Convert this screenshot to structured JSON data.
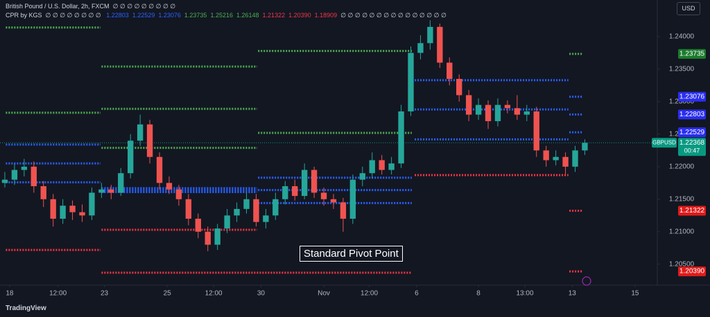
{
  "chart_data": {
    "type": "candlestick",
    "title": "British Pound / U.S. Dollar, 2h, FXCM",
    "title_na": "∅ ∅ ∅ ∅ ∅ ∅ ∅ ∅ ∅",
    "indicator": "CPR by KGS",
    "indicator_na_before": "∅ ∅ ∅ ∅ ∅ ∅ ∅ ∅",
    "indicator_values": [
      {
        "value": 1.22803,
        "label": "1.22803",
        "color": "#2962ff"
      },
      {
        "value": 1.22529,
        "label": "1.22529",
        "color": "#2962ff"
      },
      {
        "value": 1.23076,
        "label": "1.23076",
        "color": "#2962ff"
      },
      {
        "value": 1.23735,
        "label": "1.23735",
        "color": "#4caf50"
      },
      {
        "value": 1.25216,
        "label": "1.25216",
        "color": "#4caf50"
      },
      {
        "value": 1.26148,
        "label": "1.26148",
        "color": "#4caf50"
      },
      {
        "value": 1.21322,
        "label": "1.21322",
        "color": "#f23645"
      },
      {
        "value": 1.2039,
        "label": "1.20390",
        "color": "#f23645"
      },
      {
        "value": 1.18909,
        "label": "1.18909",
        "color": "#f23645"
      }
    ],
    "indicator_na_after": "∅ ∅ ∅ ∅ ∅ ∅ ∅ ∅ ∅ ∅ ∅ ∅ ∅ ∅ ∅",
    "currency": "USD",
    "annotation": "Standard Pivot Point",
    "brand": "TradingView",
    "up_color": "#26a69a",
    "down_color": "#ef5350",
    "x": [
      0,
      1,
      2,
      3,
      4,
      5,
      6,
      7,
      8,
      9,
      10,
      11,
      12,
      13,
      14,
      15,
      16,
      17,
      18,
      19,
      20,
      21,
      22,
      23,
      24,
      25,
      26,
      27,
      28,
      29,
      30,
      31,
      32,
      33,
      34,
      35,
      36,
      37,
      38,
      39,
      40,
      41,
      42,
      43,
      44,
      45,
      46,
      47,
      48,
      49,
      50,
      51,
      52,
      53,
      54,
      55,
      56,
      57,
      58,
      59,
      60
    ],
    "open": [
      1.2175,
      1.218,
      1.2195,
      1.22,
      1.217,
      1.215,
      1.212,
      1.214,
      1.213,
      1.2125,
      1.216,
      1.2165,
      1.216,
      1.219,
      1.224,
      1.2265,
      1.2215,
      1.2175,
      1.2165,
      1.215,
      1.212,
      1.21,
      1.208,
      1.2105,
      1.2125,
      1.2135,
      1.215,
      1.2115,
      1.2125,
      1.215,
      1.217,
      1.2155,
      1.2195,
      1.216,
      1.215,
      1.2145,
      1.212,
      1.218,
      1.219,
      1.221,
      1.2195,
      1.2205,
      1.2285,
      1.2375,
      1.239,
      1.2415,
      1.236,
      1.2335,
      1.231,
      1.228,
      1.2295,
      1.227,
      1.2295,
      1.229,
      1.228,
      1.2285,
      1.2225,
      1.221,
      1.2215,
      1.22,
      1.2225
    ],
    "high": [
      1.2192,
      1.2205,
      1.2212,
      1.2208,
      1.2178,
      1.2158,
      1.215,
      1.2148,
      1.2142,
      1.2168,
      1.2175,
      1.2172,
      1.2198,
      1.225,
      1.228,
      1.2272,
      1.2222,
      1.2185,
      1.2172,
      1.2158,
      1.2128,
      1.2108,
      1.2112,
      1.2135,
      1.2145,
      1.216,
      1.2158,
      1.2135,
      1.216,
      1.2178,
      1.218,
      1.2205,
      1.22,
      1.2168,
      1.2158,
      1.2152,
      1.2188,
      1.22,
      1.2222,
      1.2218,
      1.2215,
      1.2295,
      1.2385,
      1.2402,
      1.2425,
      1.242,
      1.2368,
      1.2342,
      1.2318,
      1.2305,
      1.2302,
      1.2305,
      1.2302,
      1.231,
      1.2295,
      1.2292,
      1.2232,
      1.2225,
      1.2222,
      1.2232,
      1.2242
    ],
    "low": [
      1.2168,
      1.2172,
      1.2185,
      1.216,
      1.2138,
      1.2108,
      1.2112,
      1.2118,
      1.2115,
      1.2118,
      1.2152,
      1.215,
      1.2155,
      1.2182,
      1.2232,
      1.2205,
      1.2165,
      1.2158,
      1.214,
      1.211,
      1.209,
      1.207,
      1.2072,
      1.2098,
      1.2115,
      1.2128,
      1.2108,
      1.2105,
      1.2118,
      1.2142,
      1.2148,
      1.215,
      1.2152,
      1.214,
      1.2135,
      1.21,
      1.2112,
      1.217,
      1.2182,
      1.2188,
      1.2188,
      1.2198,
      1.2278,
      1.2365,
      1.238,
      1.2352,
      1.2325,
      1.23,
      1.227,
      1.2272,
      1.2258,
      1.2262,
      1.2282,
      1.2272,
      1.227,
      1.2215,
      1.22,
      1.2202,
      1.2188,
      1.2192,
      1.2218
    ],
    "close": [
      1.218,
      1.2195,
      1.22,
      1.217,
      1.215,
      1.212,
      1.214,
      1.213,
      1.2125,
      1.216,
      1.2165,
      1.216,
      1.219,
      1.224,
      1.2265,
      1.2215,
      1.2175,
      1.2165,
      1.215,
      1.212,
      1.21,
      1.208,
      1.2105,
      1.2125,
      1.2135,
      1.215,
      1.2115,
      1.2125,
      1.215,
      1.217,
      1.2155,
      1.2195,
      1.216,
      1.215,
      1.2145,
      1.212,
      1.218,
      1.219,
      1.221,
      1.2195,
      1.2205,
      1.2285,
      1.2375,
      1.239,
      1.2415,
      1.236,
      1.2335,
      1.231,
      1.228,
      1.2295,
      1.227,
      1.2295,
      1.229,
      1.228,
      1.2285,
      1.2225,
      1.221,
      1.2215,
      1.22,
      1.2225,
      1.22368
    ],
    "levels": [
      {
        "x": [
          0.1,
          9.9
        ],
        "value": 1.2414,
        "color": "#4caf50"
      },
      {
        "x": [
          0.1,
          9.9
        ],
        "value": 1.2283,
        "color": "#4caf50"
      },
      {
        "x": [
          0.1,
          9.9
        ],
        "value": 1.2234,
        "color": "#2962ff"
      },
      {
        "x": [
          0.1,
          9.9
        ],
        "value": 1.2205,
        "color": "#2962ff"
      },
      {
        "x": [
          0.1,
          9.9
        ],
        "value": 1.2176,
        "color": "#2962ff"
      },
      {
        "x": [
          0.1,
          9.9
        ],
        "value": 1.2072,
        "color": "#f23645"
      },
      {
        "x": [
          10,
          26.1
        ],
        "value": 1.2354,
        "color": "#4caf50"
      },
      {
        "x": [
          10,
          26.1
        ],
        "value": 1.2289,
        "color": "#4caf50"
      },
      {
        "x": [
          10,
          26.1
        ],
        "value": 1.2229,
        "color": "#4caf50"
      },
      {
        "x": [
          10,
          26.1
        ],
        "value": 1.2167,
        "color": "#2962ff"
      },
      {
        "x": [
          10,
          26.1
        ],
        "value": 1.2164,
        "color": "#2962ff"
      },
      {
        "x": [
          10,
          26.1
        ],
        "value": 1.2161,
        "color": "#2962ff"
      },
      {
        "x": [
          10,
          26.1
        ],
        "value": 1.2103,
        "color": "#f23645"
      },
      {
        "x": [
          10,
          42.1
        ],
        "value": 1.2037,
        "color": "#f23645"
      },
      {
        "x": [
          26.2,
          42.1
        ],
        "value": 1.2378,
        "color": "#4caf50"
      },
      {
        "x": [
          26.2,
          42.1
        ],
        "value": 1.2252,
        "color": "#4caf50"
      },
      {
        "x": [
          26.2,
          42.1
        ],
        "value": 1.2183,
        "color": "#2962ff"
      },
      {
        "x": [
          26.2,
          42.1
        ],
        "value": 1.2164,
        "color": "#2962ff"
      },
      {
        "x": [
          26.2,
          42.1
        ],
        "value": 1.2144,
        "color": "#2962ff"
      },
      {
        "x": [
          42.4,
          58.3
        ],
        "value": 1.2333,
        "color": "#2962ff"
      },
      {
        "x": [
          42.4,
          58.3
        ],
        "value": 1.2288,
        "color": "#2962ff"
      },
      {
        "x": [
          42.4,
          58.3
        ],
        "value": 1.2242,
        "color": "#2962ff"
      },
      {
        "x": [
          42.4,
          58.3
        ],
        "value": 1.2187,
        "color": "#f23645"
      },
      {
        "x": [
          58.4,
          59.7
        ],
        "value": 1.23735,
        "color": "#4caf50"
      },
      {
        "x": [
          58.4,
          59.7
        ],
        "value": 1.23076,
        "color": "#2962ff"
      },
      {
        "x": [
          58.4,
          59.7
        ],
        "value": 1.22803,
        "color": "#2962ff"
      },
      {
        "x": [
          58.4,
          59.7
        ],
        "value": 1.22529,
        "color": "#2962ff"
      },
      {
        "x": [
          58.4,
          59.7
        ],
        "value": 1.21322,
        "color": "#f23645"
      },
      {
        "x": [
          58.4,
          59.7
        ],
        "value": 1.2039,
        "color": "#f23645"
      }
    ],
    "price_labels": [
      {
        "value": 1.23735,
        "label": "1.23735",
        "color": "#1b7b2c"
      },
      {
        "value": 1.23076,
        "label": "1.23076",
        "color": "#2a2ef0"
      },
      {
        "value": 1.22803,
        "label": "1.22803",
        "color": "#2a2ef0"
      },
      {
        "value": 1.22529,
        "label": "1.22529",
        "color": "#2a2ef0"
      },
      {
        "value": 1.21322,
        "label": "1.21322",
        "color": "#e01b1b"
      },
      {
        "value": 1.2039,
        "label": "1.20390",
        "color": "#e01b1b"
      }
    ],
    "current": {
      "symbol": "GBPUSD",
      "value": 1.22368,
      "label": "1.22368",
      "countdown": "00:47",
      "color": "#089981"
    },
    "xlim": [
      -0.5,
      67.5
    ],
    "ylim": [
      1.2021,
      1.2451
    ],
    "xticks": [
      {
        "value": 0.5,
        "label": "18"
      },
      {
        "value": 5.5,
        "label": "12:00"
      },
      {
        "value": 10.3,
        "label": "23"
      },
      {
        "value": 16.8,
        "label": "25"
      },
      {
        "value": 21.6,
        "label": "12:00"
      },
      {
        "value": 26.5,
        "label": "30"
      },
      {
        "value": 33,
        "label": "Nov"
      },
      {
        "value": 37.7,
        "label": "12:00"
      },
      {
        "value": 42.6,
        "label": "6"
      },
      {
        "value": 49,
        "label": "8"
      },
      {
        "value": 53.8,
        "label": "13:00"
      },
      {
        "value": 58.7,
        "label": "13"
      },
      {
        "value": 65.2,
        "label": "15"
      }
    ],
    "yticks": [
      {
        "value": 1.205,
        "label": "1.20500"
      },
      {
        "value": 1.21,
        "label": "1.21000"
      },
      {
        "value": 1.215,
        "label": "1.21500"
      },
      {
        "value": 1.22,
        "label": "1.22000"
      },
      {
        "value": 1.225,
        "label": "1.22500"
      },
      {
        "value": 1.23,
        "label": "1.23000"
      },
      {
        "value": 1.235,
        "label": "1.23500"
      },
      {
        "value": 1.24,
        "label": "1.24000"
      }
    ]
  }
}
